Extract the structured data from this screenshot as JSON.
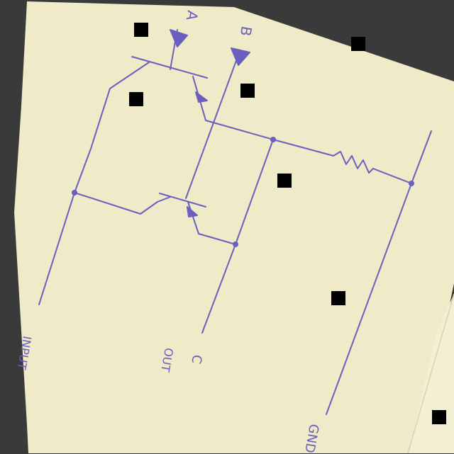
{
  "labels": {
    "a": "A",
    "b": "B",
    "out": "OUT",
    "c": "C",
    "input": "INPUT",
    "gnd": "GND"
  },
  "colors": {
    "background": "#3a3a3a",
    "paper": "#efeac8",
    "ink": "#6a5fbf",
    "marker": "#000000"
  }
}
